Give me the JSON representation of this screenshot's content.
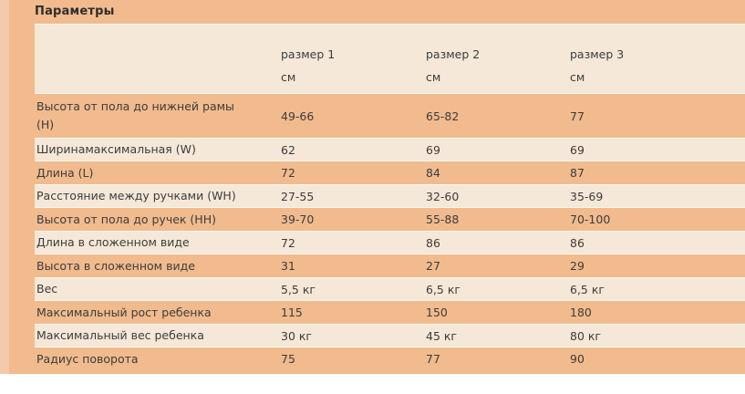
{
  "page": {
    "title": "Параметры",
    "colors": {
      "background_orange": "#f1bb8e",
      "row_cream": "#f5e8d8",
      "left_strip": "#f4c9ac",
      "text": "#3d3d3d",
      "bottom_background": "#ffffff"
    }
  },
  "table": {
    "columns": [
      {
        "label": "размер 1",
        "unit": "см"
      },
      {
        "label": "размер 2",
        "unit": "см"
      },
      {
        "label": "размер 3",
        "unit": "см"
      }
    ],
    "rows": [
      {
        "label": "Высота от пола до нижней рамы\n(H)",
        "values": [
          "49-66",
          "65-82",
          "77"
        ]
      },
      {
        "label": "Ширинамаксимальная (W)",
        "values": [
          "62",
          "69",
          "69"
        ]
      },
      {
        "label": "Длина (L)",
        "values": [
          "72",
          "84",
          "87"
        ]
      },
      {
        "label": "Расстояние между ручками (WH)",
        "values": [
          "27-55",
          "32-60",
          "35-69"
        ]
      },
      {
        "label": "Высота от пола до ручек (HH)",
        "values": [
          "39-70",
          "55-88",
          "70-100"
        ]
      },
      {
        "label": "Длина в сложенном виде",
        "values": [
          "72",
          "86",
          "86"
        ]
      },
      {
        "label": "Высота в сложенном виде",
        "values": [
          "31",
          "27",
          "29"
        ]
      },
      {
        "label": "Вес",
        "values": [
          "5,5 кг",
          "6,5 кг",
          "6,5 кг"
        ]
      },
      {
        "label": "Максимальный рост ребенка",
        "values": [
          "115",
          "150",
          "180"
        ]
      },
      {
        "label": "Максимальный вес ребенка",
        "values": [
          "30 кг",
          "45 кг",
          "80 кг"
        ]
      },
      {
        "label": "Радиус поворота",
        "values": [
          "75",
          "77",
          "90"
        ]
      }
    ]
  }
}
